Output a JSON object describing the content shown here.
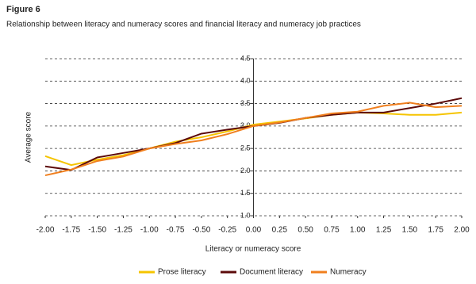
{
  "chart_data": {
    "type": "line",
    "title": "Figure 6",
    "subtitle": "Relationship between literacy and numeracy scores and financial literacy and numeracy job practices",
    "x_label": "Literacy or numeracy score",
    "y_label": "Average score",
    "x": [
      -2,
      -1.75,
      -1.5,
      -1.25,
      -1,
      -0.75,
      -0.5,
      -0.25,
      0,
      0.25,
      0.5,
      0.75,
      1,
      1.25,
      1.5,
      1.75,
      2
    ],
    "series": [
      {
        "name": "Prose literacy",
        "color": "#f5c400",
        "values": [
          2.33,
          2.13,
          2.25,
          2.35,
          2.5,
          2.65,
          2.75,
          2.88,
          3.03,
          3.1,
          3.17,
          3.25,
          3.3,
          3.28,
          3.25,
          3.25,
          3.3
        ]
      },
      {
        "name": "Document literacy",
        "color": "#5c0a0a",
        "values": [
          2.1,
          2.02,
          2.3,
          2.4,
          2.5,
          2.62,
          2.83,
          2.92,
          3.0,
          3.07,
          3.18,
          3.25,
          3.3,
          3.3,
          3.4,
          3.5,
          3.62
        ]
      },
      {
        "name": "Numeracy",
        "color": "#f07f1e",
        "values": [
          1.9,
          2.03,
          2.22,
          2.32,
          2.5,
          2.6,
          2.68,
          2.82,
          3.0,
          3.08,
          3.18,
          3.28,
          3.32,
          3.45,
          3.52,
          3.42,
          3.45
        ]
      }
    ],
    "xlim": [
      -2,
      2
    ],
    "xticks": [
      {
        "value": -2,
        "label": "-2.00"
      },
      {
        "value": -1.75,
        "label": "-1.75"
      },
      {
        "value": -1.5,
        "label": "-1.50"
      },
      {
        "value": -1.25,
        "label": "-1.25"
      },
      {
        "value": -1,
        "label": "-1.00"
      },
      {
        "value": -0.75,
        "label": "-0.75"
      },
      {
        "value": -0.5,
        "label": "-0.50"
      },
      {
        "value": -0.25,
        "label": "-0.25"
      },
      {
        "value": 0,
        "label": "0.00"
      },
      {
        "value": 0.25,
        "label": "0.25"
      },
      {
        "value": 0.5,
        "label": "0.50"
      },
      {
        "value": 0.75,
        "label": "0.75"
      },
      {
        "value": 1,
        "label": "1.00"
      },
      {
        "value": 1.25,
        "label": "1.25"
      },
      {
        "value": 1.5,
        "label": "1.50"
      },
      {
        "value": 1.75,
        "label": "1.75"
      },
      {
        "value": 2,
        "label": "2.00"
      }
    ],
    "ylim": [
      1,
      4.5
    ],
    "yticks": [
      {
        "value": 1,
        "label": "1.0"
      },
      1.5,
      {
        "value": 2,
        "label": "2.0"
      },
      2.5,
      {
        "value": 3,
        "label": "3.0"
      },
      3.5,
      {
        "value": 4,
        "label": "4.0"
      },
      4.5
    ],
    "grid": true,
    "legend": "bottom"
  }
}
